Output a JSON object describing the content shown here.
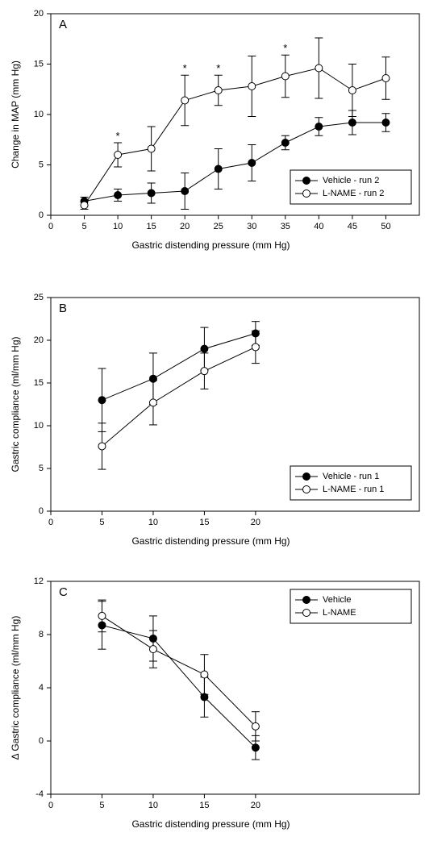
{
  "chart_data": [
    {
      "type": "line",
      "panel_label": "A",
      "x_label": "Gastric distending pressure (mm Hg)",
      "y_label": "Change in MAP (mm Hg)",
      "x": [
        5,
        10,
        15,
        20,
        25,
        30,
        35,
        40,
        45,
        50
      ],
      "xlim": [
        0,
        55
      ],
      "xticks": [
        0,
        5,
        10,
        15,
        20,
        25,
        30,
        35,
        40,
        45,
        50
      ],
      "ylim": [
        0,
        20
      ],
      "yticks": [
        0,
        5,
        10,
        15,
        20
      ],
      "legend": "lower right",
      "series": [
        {
          "name": "Vehicle - run 2",
          "color": "#000000",
          "marker_fill": "#000000",
          "values": [
            1.4,
            2.0,
            2.2,
            2.4,
            4.6,
            5.2,
            7.2,
            8.8,
            9.2,
            9.2
          ],
          "errors": [
            0.4,
            0.6,
            1.0,
            1.8,
            2.0,
            1.8,
            0.7,
            0.9,
            1.2,
            0.9
          ]
        },
        {
          "name": "L-NAME - run 2",
          "color": "#000000",
          "marker_fill": "#ffffff",
          "values": [
            1.0,
            6.0,
            6.6,
            11.4,
            12.4,
            12.8,
            13.8,
            14.6,
            12.4,
            13.6
          ],
          "errors": [
            0.4,
            1.2,
            2.2,
            2.5,
            1.5,
            3.0,
            2.1,
            3.0,
            2.6,
            2.1
          ]
        }
      ],
      "annotations": [
        {
          "text": "*",
          "x": 10,
          "y": 7.8
        },
        {
          "text": "*",
          "x": 20,
          "y": 14.5
        },
        {
          "text": "*",
          "x": 25,
          "y": 14.5
        },
        {
          "text": "*",
          "x": 35,
          "y": 16.5
        }
      ]
    },
    {
      "type": "line",
      "panel_label": "B",
      "x_label": "Gastric distending pressure (mm Hg)",
      "y_label": "Gastric compliance (ml/mm Hg)",
      "x": [
        5,
        10,
        15,
        20
      ],
      "xlim": [
        0,
        36
      ],
      "xticks": [
        0,
        5,
        10,
        15,
        20
      ],
      "ylim": [
        0,
        25
      ],
      "yticks": [
        0,
        5,
        10,
        15,
        20,
        25
      ],
      "legend": "lower right",
      "series": [
        {
          "name": "Vehicle - run 1",
          "color": "#000000",
          "marker_fill": "#000000",
          "values": [
            13.0,
            15.5,
            19.0,
            20.8
          ],
          "errors": [
            3.7,
            3.0,
            2.5,
            1.4
          ]
        },
        {
          "name": "L-NAME - run 1",
          "color": "#000000",
          "marker_fill": "#ffffff",
          "values": [
            7.6,
            12.7,
            16.4,
            19.2
          ],
          "errors": [
            2.7,
            2.6,
            2.1,
            1.9
          ]
        }
      ]
    },
    {
      "type": "line",
      "panel_label": "C",
      "x_label": "Gastric distending pressure (mm Hg)",
      "y_label": "Δ Gastric compliance (ml/mm Hg)",
      "x": [
        5,
        10,
        15,
        20
      ],
      "xlim": [
        0,
        36
      ],
      "xticks": [
        0,
        5,
        10,
        15,
        20
      ],
      "ylim": [
        -4,
        12
      ],
      "yticks": [
        -4,
        0,
        4,
        8,
        12
      ],
      "legend": "upper right",
      "series": [
        {
          "name": "Vehicle",
          "color": "#000000",
          "marker_fill": "#000000",
          "values": [
            8.7,
            7.7,
            3.3,
            -0.5
          ],
          "errors": [
            1.8,
            1.7,
            1.5,
            0.9
          ]
        },
        {
          "name": "L-NAME",
          "color": "#000000",
          "marker_fill": "#ffffff",
          "values": [
            9.4,
            6.9,
            5.0,
            1.1
          ],
          "errors": [
            1.2,
            1.4,
            1.5,
            1.1
          ]
        }
      ]
    }
  ]
}
